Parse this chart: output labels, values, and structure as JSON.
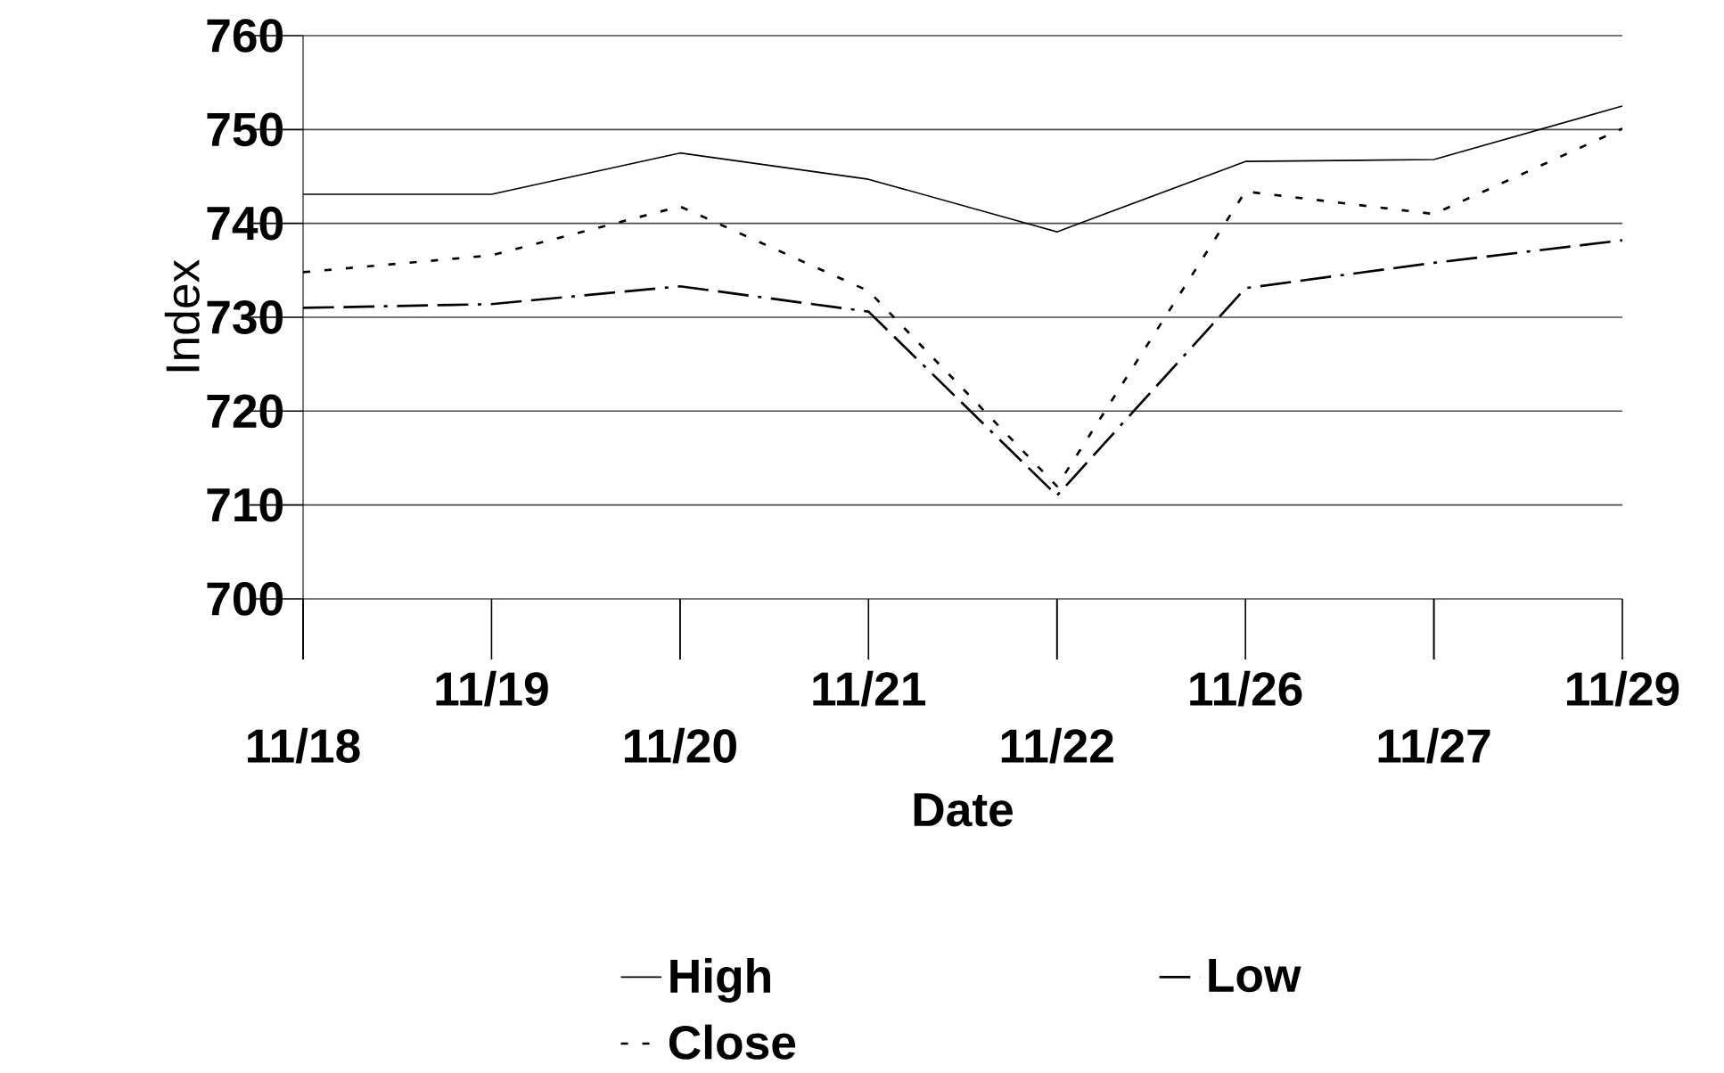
{
  "chart_data": {
    "type": "line",
    "xlabel": "Date",
    "ylabel": "Index",
    "categories": [
      "11/18",
      "11/19",
      "11/20",
      "11/21",
      "11/22",
      "11/26",
      "11/27",
      "11/29"
    ],
    "ylim": [
      700,
      760
    ],
    "yticks": [
      700,
      710,
      720,
      730,
      740,
      750,
      760
    ],
    "grid": "y",
    "legend": "bottom",
    "series": [
      {
        "name": "High",
        "color": "#000000",
        "line_style": "solid",
        "values": [
          743.1,
          743.1,
          747.5,
          744.7,
          739.1,
          746.6,
          746.8,
          752.5
        ]
      },
      {
        "name": "Low",
        "color": "#000000",
        "line_style": "dashed",
        "values": [
          731.0,
          731.4,
          733.3,
          730.6,
          711.0,
          733.1,
          735.8,
          738.2
        ]
      },
      {
        "name": "Close",
        "color": "#000000",
        "line_style": "dotted",
        "values": [
          734.8,
          736.6,
          741.8,
          732.8,
          712.0,
          743.4,
          741.0,
          750.1
        ]
      }
    ]
  }
}
